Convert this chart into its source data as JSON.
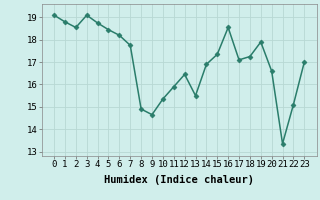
{
  "x": [
    0,
    1,
    2,
    3,
    4,
    5,
    6,
    7,
    8,
    9,
    10,
    11,
    12,
    13,
    14,
    15,
    16,
    17,
    18,
    19,
    20,
    21,
    22,
    23
  ],
  "y": [
    19.1,
    18.8,
    18.55,
    19.1,
    18.75,
    18.45,
    18.2,
    17.75,
    14.9,
    14.65,
    15.35,
    15.9,
    16.45,
    15.5,
    16.9,
    17.35,
    18.55,
    17.1,
    17.25,
    17.9,
    16.6,
    13.35,
    15.1,
    17.0
  ],
  "line_color": "#2a7d6b",
  "marker": "D",
  "marker_size": 2.5,
  "bg_color": "#d0eeeb",
  "grid_color": "#b8d8d4",
  "xlabel": "Humidex (Indice chaleur)",
  "ylim": [
    12.8,
    19.6
  ],
  "yticks": [
    13,
    14,
    15,
    16,
    17,
    18,
    19
  ],
  "xticks": [
    0,
    1,
    2,
    3,
    4,
    5,
    6,
    7,
    8,
    9,
    10,
    11,
    12,
    13,
    14,
    15,
    16,
    17,
    18,
    19,
    20,
    21,
    22,
    23
  ],
  "xlabel_fontsize": 7.5,
  "tick_fontsize": 6.5,
  "line_width": 1.1
}
